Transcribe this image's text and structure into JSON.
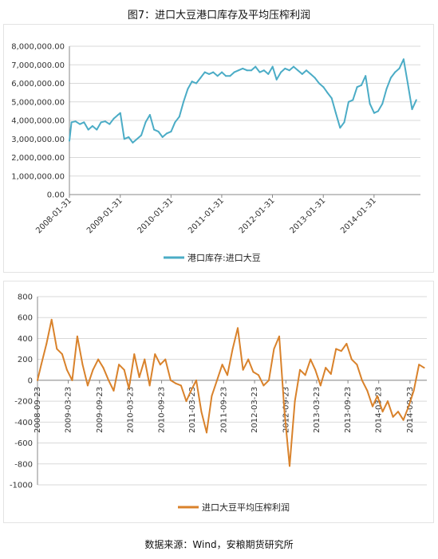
{
  "figure_title": "图7：进口大豆港口库存及平均压榨利润",
  "source_note": "数据来源：Wind，安粮期货研究所",
  "colors": {
    "inventory": "#4bacc6",
    "margin": "#d9822b"
  },
  "chart_data": [
    {
      "type": "line",
      "legend": "港口库存:进口大豆",
      "ylim": [
        0,
        8000000
      ],
      "yticks": [
        "0.00",
        "1,000,000.00",
        "2,000,000.00",
        "3,000,000.00",
        "4,000,000.00",
        "5,000,000.00",
        "6,000,000.00",
        "7,000,000.00",
        "8,000,000.00"
      ],
      "x_range": [
        "2008-01-31",
        "2014-12-31"
      ],
      "xticks": [
        "2008-01-31",
        "2009-01-31",
        "2010-01-31",
        "2011-01-31",
        "2012-01-31",
        "2013-01-31",
        "2014-01-31"
      ],
      "series": [
        {
          "x": [
            "2008-01-31",
            "2008-02-15",
            "2008-03-15",
            "2008-04-15",
            "2008-05-15",
            "2008-06-15",
            "2008-07-15",
            "2008-08-15",
            "2008-09-15",
            "2008-10-15",
            "2008-11-15",
            "2008-12-15",
            "2009-01-15",
            "2009-01-31",
            "2009-03-01",
            "2009-04-01",
            "2009-05-01",
            "2009-06-01",
            "2009-07-01",
            "2009-08-01",
            "2009-09-01",
            "2009-10-01",
            "2009-11-01",
            "2009-12-01",
            "2010-01-01",
            "2010-02-01",
            "2010-03-01",
            "2010-04-01",
            "2010-05-01",
            "2010-06-01",
            "2010-07-01",
            "2010-08-01",
            "2010-09-01",
            "2010-10-01",
            "2010-11-01",
            "2010-12-01",
            "2011-01-01",
            "2011-02-01",
            "2011-03-01",
            "2011-04-01",
            "2011-05-01",
            "2011-06-01",
            "2011-07-01",
            "2011-08-01",
            "2011-09-01",
            "2011-10-01",
            "2011-11-01",
            "2011-12-01",
            "2012-01-01",
            "2012-02-01",
            "2012-03-01",
            "2012-04-01",
            "2012-05-01",
            "2012-06-01",
            "2012-07-01",
            "2012-08-01",
            "2012-09-01",
            "2012-10-01",
            "2012-11-01",
            "2012-12-01",
            "2013-01-01",
            "2013-02-01",
            "2013-03-01",
            "2013-04-01",
            "2013-05-01",
            "2013-06-01",
            "2013-07-01",
            "2013-08-01",
            "2013-09-01",
            "2013-10-01",
            "2013-11-01",
            "2013-12-01",
            "2014-01-01",
            "2014-02-01",
            "2014-03-01",
            "2014-04-01",
            "2014-05-01",
            "2014-06-01",
            "2014-07-01",
            "2014-08-01",
            "2014-09-01",
            "2014-10-01",
            "2014-11-01",
            "2014-12-01"
          ],
          "values": [
            2900000,
            3900000,
            3950000,
            3800000,
            3900000,
            3500000,
            3700000,
            3500000,
            3900000,
            3950000,
            3800000,
            4100000,
            4300000,
            4400000,
            3000000,
            3100000,
            2800000,
            3000000,
            3200000,
            3900000,
            4300000,
            3500000,
            3400000,
            3100000,
            3300000,
            3400000,
            3900000,
            4200000,
            5000000,
            5700000,
            6100000,
            6000000,
            6300000,
            6600000,
            6500000,
            6600000,
            6400000,
            6600000,
            6400000,
            6400000,
            6600000,
            6700000,
            6800000,
            6700000,
            6700000,
            6900000,
            6600000,
            6700000,
            6500000,
            6900000,
            6200000,
            6600000,
            6800000,
            6700000,
            6900000,
            6700000,
            6500000,
            6700000,
            6500000,
            6300000,
            6000000,
            5800000,
            5500000,
            5200000,
            4400000,
            3600000,
            3900000,
            5000000,
            5100000,
            5800000,
            5900000,
            6400000,
            4900000,
            4400000,
            4500000,
            4900000,
            5700000,
            6300000,
            6600000,
            6800000,
            7300000,
            6000000,
            4600000,
            5100000
          ]
        }
      ]
    },
    {
      "type": "line",
      "legend": "进口大豆平均压榨利润",
      "ylim": [
        -1000,
        800
      ],
      "yticks": [
        "-1000",
        "-800",
        "-600",
        "-400",
        "-200",
        "0",
        "200",
        "400",
        "600",
        "800"
      ],
      "x_range": [
        "2008-09-23",
        "2014-12-31"
      ],
      "xticks": [
        "2008-09-23",
        "2009-03-23",
        "2009-09-23",
        "2010-03-23",
        "2010-09-23",
        "2011-03-23",
        "2011-09-23",
        "2012-03-23",
        "2012-09-23",
        "2013-03-23",
        "2013-09-23",
        "2014-03-23",
        "2014-09-23"
      ],
      "series": [
        {
          "x": [
            "2008-09-23",
            "2008-10-15",
            "2008-11-15",
            "2008-12-15",
            "2009-01-15",
            "2009-02-15",
            "2009-03-15",
            "2009-04-15",
            "2009-05-15",
            "2009-06-15",
            "2009-07-15",
            "2009-08-15",
            "2009-09-15",
            "2009-10-15",
            "2009-11-15",
            "2009-12-15",
            "2010-01-15",
            "2010-02-15",
            "2010-03-15",
            "2010-04-15",
            "2010-05-15",
            "2010-06-15",
            "2010-07-15",
            "2010-08-15",
            "2010-09-15",
            "2010-10-15",
            "2010-11-15",
            "2010-12-15",
            "2011-01-15",
            "2011-02-15",
            "2011-03-15",
            "2011-04-15",
            "2011-05-15",
            "2011-06-15",
            "2011-07-15",
            "2011-08-15",
            "2011-09-15",
            "2011-10-15",
            "2011-11-15",
            "2011-12-15",
            "2012-01-15",
            "2012-02-15",
            "2012-03-15",
            "2012-04-15",
            "2012-05-15",
            "2012-06-15",
            "2012-07-15",
            "2012-08-15",
            "2012-09-15",
            "2012-10-15",
            "2012-11-15",
            "2012-12-15",
            "2013-01-15",
            "2013-02-15",
            "2013-03-15",
            "2013-04-15",
            "2013-05-15",
            "2013-06-15",
            "2013-07-15",
            "2013-08-15",
            "2013-09-15",
            "2013-10-15",
            "2013-11-15",
            "2013-12-15",
            "2014-01-15",
            "2014-02-15",
            "2014-03-15",
            "2014-04-15",
            "2014-05-15",
            "2014-06-15",
            "2014-07-15",
            "2014-08-15",
            "2014-09-15",
            "2014-10-15",
            "2014-11-15",
            "2014-12-15"
          ],
          "values": [
            0,
            150,
            350,
            580,
            300,
            250,
            100,
            0,
            420,
            150,
            -50,
            100,
            200,
            120,
            0,
            -100,
            150,
            100,
            -80,
            250,
            30,
            200,
            -50,
            250,
            150,
            200,
            0,
            -30,
            -50,
            -200,
            -100,
            0,
            -300,
            -500,
            -150,
            0,
            150,
            50,
            300,
            500,
            100,
            200,
            80,
            50,
            -50,
            0,
            300,
            420,
            -300,
            -820,
            -200,
            100,
            50,
            200,
            100,
            -50,
            120,
            60,
            300,
            280,
            350,
            200,
            150,
            0,
            -100,
            -250,
            -150,
            -300,
            -200,
            -350,
            -300,
            -380,
            -250,
            -100,
            150,
            120
          ]
        }
      ]
    }
  ]
}
